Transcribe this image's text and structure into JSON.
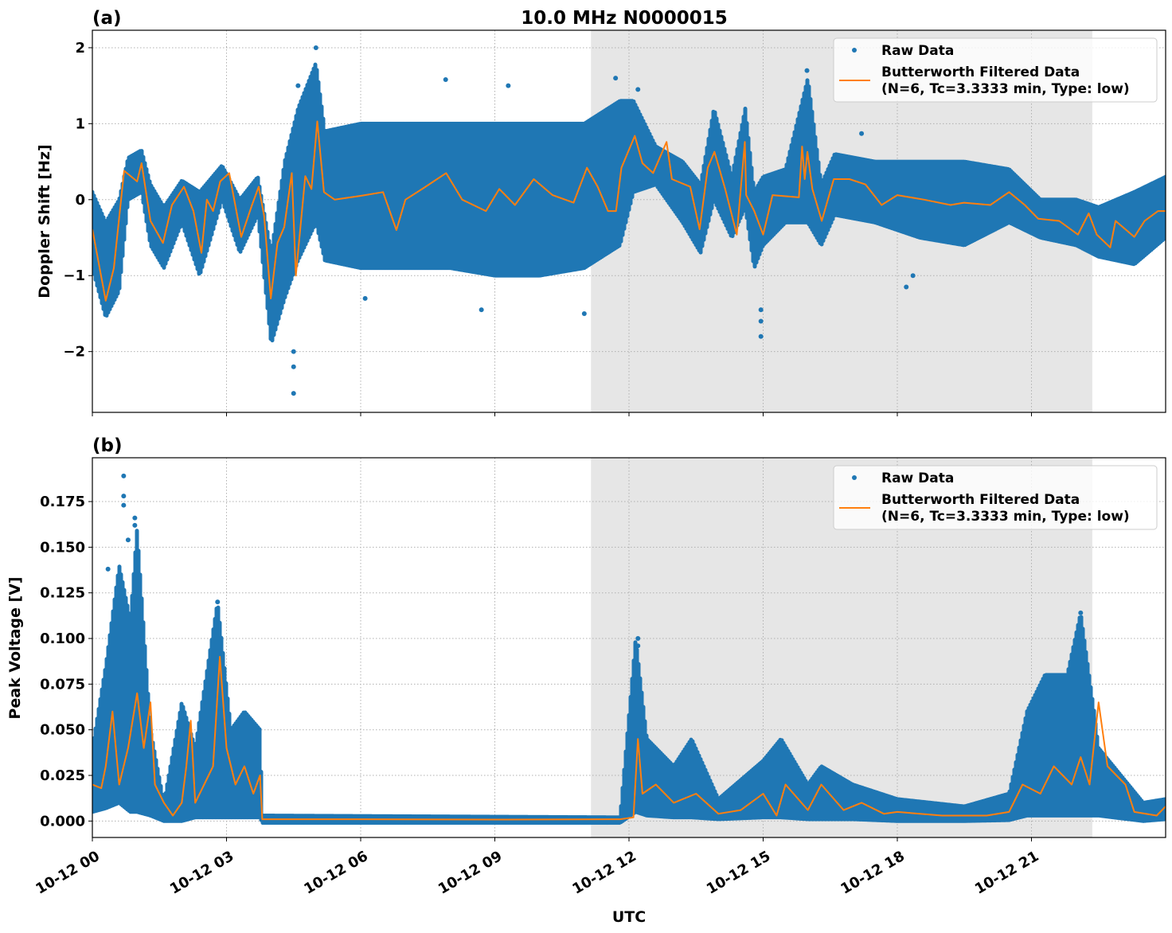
{
  "title": "10.0 MHz N0000015",
  "colors": {
    "raw": "#1f77b4",
    "filtered": "#ff7f0e",
    "shade": "#e6e6e6",
    "grid": "#b0b0b0"
  },
  "xaxis": {
    "label": "UTC",
    "range_hours": [
      0,
      24
    ],
    "ticks": [
      {
        "h": 0,
        "label": "10-12 00"
      },
      {
        "h": 3,
        "label": "10-12 03"
      },
      {
        "h": 6,
        "label": "10-12 06"
      },
      {
        "h": 9,
        "label": "10-12 09"
      },
      {
        "h": 12,
        "label": "10-12 12"
      },
      {
        "h": 15,
        "label": "10-12 15"
      },
      {
        "h": 18,
        "label": "10-12 18"
      },
      {
        "h": 21,
        "label": "10-12 21"
      }
    ]
  },
  "legend": {
    "raw": "Raw Data",
    "filtered_line1": "Butterworth Filtered Data",
    "filtered_line2": "(N=6, Tc=3.3333 min, Type: low)",
    "placement": "upper right"
  },
  "chart_data": [
    {
      "type": "scatter+line",
      "panel_label": "(a)",
      "ylabel": "Doppler Shift [Hz]",
      "ylim": [
        -2.8,
        2.23
      ],
      "yticks": [
        {
          "v": 2,
          "label": "2"
        },
        {
          "v": 1,
          "label": "1"
        },
        {
          "v": 0,
          "label": "0"
        },
        {
          "v": -1,
          "label": "−1"
        },
        {
          "v": -2,
          "label": "−2"
        }
      ],
      "grid": true,
      "shaded_span_hours": [
        11.15,
        22.36
      ],
      "raw_envelope": [
        [
          0,
          -0.9,
          0.1
        ],
        [
          0.3,
          -1.55,
          -0.3
        ],
        [
          0.6,
          -1.2,
          0
        ],
        [
          0.8,
          0,
          0.55
        ],
        [
          1.1,
          0.1,
          0.65
        ],
        [
          1.3,
          -0.6,
          0.2
        ],
        [
          1.6,
          -0.9,
          -0.1
        ],
        [
          2.0,
          -0.3,
          0.25
        ],
        [
          2.4,
          -1.0,
          0.1
        ],
        [
          2.9,
          0,
          0.45
        ],
        [
          3.3,
          -0.7,
          0
        ],
        [
          3.7,
          -0.2,
          0.3
        ],
        [
          4.0,
          -1.9,
          -0.7
        ],
        [
          4.3,
          -1.3,
          0.5
        ],
        [
          4.6,
          -0.8,
          1.2
        ],
        [
          5.0,
          -0.3,
          1.8
        ],
        [
          5.2,
          -0.8,
          0.9
        ],
        [
          6,
          -0.9,
          1.0
        ],
        [
          7,
          -0.9,
          1.0
        ],
        [
          8,
          -0.9,
          1.0
        ],
        [
          9,
          -1.0,
          1.0
        ],
        [
          10,
          -1.0,
          1.0
        ],
        [
          11,
          -0.9,
          1.0
        ],
        [
          11.8,
          -0.6,
          1.3
        ],
        [
          12.1,
          0.1,
          1.3
        ],
        [
          12.6,
          0.2,
          0.7
        ],
        [
          13.2,
          -0.3,
          0.5
        ],
        [
          13.6,
          -0.7,
          0.2
        ],
        [
          13.9,
          0,
          1.2
        ],
        [
          14.3,
          -0.5,
          0.3
        ],
        [
          14.6,
          -0.1,
          1.2
        ],
        [
          14.8,
          -0.9,
          0.1
        ],
        [
          15.0,
          -0.6,
          0.3
        ],
        [
          15.5,
          -0.3,
          0.4
        ],
        [
          16.0,
          -0.3,
          1.6
        ],
        [
          16.3,
          -0.6,
          0.2
        ],
        [
          16.6,
          -0.2,
          0.6
        ],
        [
          17.5,
          -0.3,
          0.5
        ],
        [
          18.5,
          -0.5,
          0.5
        ],
        [
          19.5,
          -0.6,
          0.5
        ],
        [
          20.5,
          -0.3,
          0.4
        ],
        [
          21.2,
          -0.5,
          0
        ],
        [
          22,
          -0.6,
          0
        ],
        [
          22.5,
          -0.75,
          -0.1
        ],
        [
          23.3,
          -0.85,
          0.1
        ],
        [
          24,
          -0.5,
          0.3
        ]
      ],
      "raw_outliers": [
        [
          4.5,
          -2.55
        ],
        [
          4.5,
          -2.2
        ],
        [
          4.5,
          -2.0
        ],
        [
          5.0,
          2.0
        ],
        [
          4.6,
          1.5
        ],
        [
          14.95,
          -1.8
        ],
        [
          14.95,
          -1.45
        ],
        [
          14.95,
          -1.6
        ],
        [
          11.7,
          1.6
        ],
        [
          12.2,
          1.45
        ],
        [
          15.98,
          1.7
        ],
        [
          17.2,
          0.87
        ],
        [
          18.2,
          -1.15
        ],
        [
          18.35,
          -1.0
        ],
        [
          6.1,
          -1.3
        ],
        [
          8.7,
          -1.45
        ],
        [
          11.0,
          -1.5
        ],
        [
          9.3,
          1.5
        ],
        [
          7.9,
          1.58
        ]
      ],
      "filtered": [
        [
          0,
          -0.39
        ],
        [
          0.3,
          -1.33
        ],
        [
          0.48,
          -0.9
        ],
        [
          0.71,
          0.38
        ],
        [
          1.0,
          0.24
        ],
        [
          1.1,
          0.48
        ],
        [
          1.3,
          -0.28
        ],
        [
          1.58,
          -0.57
        ],
        [
          1.78,
          -0.07
        ],
        [
          2.05,
          0.17
        ],
        [
          2.26,
          -0.15
        ],
        [
          2.44,
          -0.7
        ],
        [
          2.56,
          0
        ],
        [
          2.7,
          -0.15
        ],
        [
          2.86,
          0.24
        ],
        [
          3.06,
          0.35
        ],
        [
          3.33,
          -0.49
        ],
        [
          3.57,
          -0.07
        ],
        [
          3.72,
          0.17
        ],
        [
          3.84,
          -0.21
        ],
        [
          3.99,
          -1.3
        ],
        [
          4.14,
          -0.57
        ],
        [
          4.29,
          -0.36
        ],
        [
          4.46,
          0.35
        ],
        [
          4.55,
          -1.0
        ],
        [
          4.76,
          0.31
        ],
        [
          4.9,
          0.14
        ],
        [
          5.03,
          1.03
        ],
        [
          5.18,
          0.1
        ],
        [
          5.42,
          0
        ],
        [
          6.0,
          0.05
        ],
        [
          6.5,
          0.1
        ],
        [
          6.8,
          -0.4
        ],
        [
          7.0,
          0
        ],
        [
          7.4,
          0.15
        ],
        [
          7.91,
          0.35
        ],
        [
          8.27,
          0
        ],
        [
          8.8,
          -0.15
        ],
        [
          9.1,
          0.14
        ],
        [
          9.45,
          -0.07
        ],
        [
          9.87,
          0.27
        ],
        [
          10.29,
          0.06
        ],
        [
          10.76,
          -0.04
        ],
        [
          11.06,
          0.42
        ],
        [
          11.3,
          0.17
        ],
        [
          11.53,
          -0.15
        ],
        [
          11.71,
          -0.15
        ],
        [
          11.83,
          0.42
        ],
        [
          12.13,
          0.84
        ],
        [
          12.3,
          0.48
        ],
        [
          12.54,
          0.35
        ],
        [
          12.84,
          0.76
        ],
        [
          12.96,
          0.27
        ],
        [
          13.37,
          0.17
        ],
        [
          13.58,
          -0.39
        ],
        [
          13.76,
          0.42
        ],
        [
          13.91,
          0.63
        ],
        [
          14.15,
          0.14
        ],
        [
          14.41,
          -0.46
        ],
        [
          14.59,
          0.76
        ],
        [
          14.62,
          0.06
        ],
        [
          14.8,
          -0.15
        ],
        [
          15.0,
          -0.46
        ],
        [
          15.21,
          0.06
        ],
        [
          15.8,
          0.03
        ],
        [
          15.87,
          0.7
        ],
        [
          15.93,
          0.27
        ],
        [
          15.99,
          0.63
        ],
        [
          16.1,
          0.14
        ],
        [
          16.31,
          -0.28
        ],
        [
          16.58,
          0.27
        ],
        [
          16.93,
          0.27
        ],
        [
          17.29,
          0.2
        ],
        [
          17.65,
          -0.07
        ],
        [
          18.0,
          0.06
        ],
        [
          18.6,
          0
        ],
        [
          19.19,
          -0.07
        ],
        [
          19.49,
          -0.04
        ],
        [
          20.08,
          -0.07
        ],
        [
          20.5,
          0.1
        ],
        [
          20.85,
          -0.07
        ],
        [
          21.15,
          -0.25
        ],
        [
          21.62,
          -0.28
        ],
        [
          22.04,
          -0.46
        ],
        [
          22.28,
          -0.18
        ],
        [
          22.46,
          -0.46
        ],
        [
          22.76,
          -0.63
        ],
        [
          22.88,
          -0.28
        ],
        [
          23.3,
          -0.49
        ],
        [
          23.53,
          -0.28
        ],
        [
          23.83,
          -0.15
        ],
        [
          24.0,
          -0.15
        ]
      ]
    },
    {
      "type": "scatter+line",
      "panel_label": "(b)",
      "ylabel": "Peak Voltage [V]",
      "ylim": [
        -0.009,
        0.199
      ],
      "yticks": [
        {
          "v": 0,
          "label": "0.000"
        },
        {
          "v": 0.025,
          "label": "0.025"
        },
        {
          "v": 0.05,
          "label": "0.050"
        },
        {
          "v": 0.075,
          "label": "0.075"
        },
        {
          "v": 0.1,
          "label": "0.100"
        },
        {
          "v": 0.125,
          "label": "0.125"
        },
        {
          "v": 0.15,
          "label": "0.150"
        },
        {
          "v": 0.175,
          "label": "0.175"
        }
      ],
      "grid": true,
      "shaded_span_hours": [
        11.15,
        22.36
      ],
      "raw_envelope": [
        [
          0,
          0.005,
          0.04
        ],
        [
          0.3,
          0.007,
          0.085
        ],
        [
          0.6,
          0.01,
          0.14
        ],
        [
          0.85,
          0.005,
          0.11
        ],
        [
          1.0,
          0.005,
          0.16
        ],
        [
          1.3,
          0.003,
          0.05
        ],
        [
          1.6,
          0.0,
          0.01
        ],
        [
          2.0,
          0.0,
          0.065
        ],
        [
          2.3,
          0.002,
          0.04
        ],
        [
          2.8,
          0.002,
          0.12
        ],
        [
          3.1,
          0.002,
          0.05
        ],
        [
          3.4,
          0.002,
          0.06
        ],
        [
          3.75,
          0.002,
          0.05
        ],
        [
          3.8,
          -0.001,
          0.003
        ],
        [
          11.8,
          -0.001,
          0.002
        ],
        [
          12.15,
          0.005,
          0.1
        ],
        [
          12.4,
          0.003,
          0.045
        ],
        [
          13.0,
          0.002,
          0.03
        ],
        [
          13.4,
          0.002,
          0.045
        ],
        [
          14,
          0.001,
          0.012
        ],
        [
          15,
          0.002,
          0.033
        ],
        [
          15.4,
          0.002,
          0.045
        ],
        [
          16,
          0.001,
          0.02
        ],
        [
          16.3,
          0.001,
          0.03
        ],
        [
          17,
          0.001,
          0.02
        ],
        [
          18,
          0.0,
          0.012
        ],
        [
          19.5,
          0.0,
          0.008
        ],
        [
          20.5,
          0.0005,
          0.015
        ],
        [
          20.9,
          0.003,
          0.06
        ],
        [
          21.3,
          0.003,
          0.08
        ],
        [
          21.8,
          0.003,
          0.08
        ],
        [
          22.1,
          0.003,
          0.114
        ],
        [
          22.4,
          0.003,
          0.06
        ],
        [
          22.5,
          0.003,
          0.04
        ],
        [
          23.5,
          0.0,
          0.01
        ],
        [
          24,
          0.001,
          0.012
        ]
      ],
      "raw_outliers": [
        [
          0.7,
          0.189
        ],
        [
          0.7,
          0.178
        ],
        [
          0.7,
          0.173
        ],
        [
          0.95,
          0.166
        ],
        [
          0.95,
          0.162
        ],
        [
          0.8,
          0.154
        ],
        [
          0.35,
          0.138
        ],
        [
          2.8,
          0.12
        ],
        [
          12.2,
          0.1
        ],
        [
          12.2,
          0.096
        ],
        [
          22.1,
          0.114
        ]
      ],
      "filtered": [
        [
          0,
          0.02
        ],
        [
          0.2,
          0.018
        ],
        [
          0.3,
          0.03
        ],
        [
          0.45,
          0.06
        ],
        [
          0.6,
          0.02
        ],
        [
          0.8,
          0.04
        ],
        [
          1.0,
          0.07
        ],
        [
          1.15,
          0.04
        ],
        [
          1.3,
          0.065
        ],
        [
          1.4,
          0.02
        ],
        [
          1.6,
          0.01
        ],
        [
          1.8,
          0.003
        ],
        [
          2.0,
          0.01
        ],
        [
          2.1,
          0.03
        ],
        [
          2.2,
          0.055
        ],
        [
          2.3,
          0.01
        ],
        [
          2.5,
          0.02
        ],
        [
          2.7,
          0.03
        ],
        [
          2.85,
          0.09
        ],
        [
          3.0,
          0.04
        ],
        [
          3.2,
          0.02
        ],
        [
          3.4,
          0.03
        ],
        [
          3.6,
          0.015
        ],
        [
          3.75,
          0.025
        ],
        [
          3.8,
          0.001
        ],
        [
          6,
          0.001
        ],
        [
          9,
          0.0008
        ],
        [
          11.8,
          0.001
        ],
        [
          12.1,
          0.002
        ],
        [
          12.2,
          0.045
        ],
        [
          12.3,
          0.015
        ],
        [
          12.6,
          0.02
        ],
        [
          13.0,
          0.01
        ],
        [
          13.5,
          0.015
        ],
        [
          14,
          0.004
        ],
        [
          14.5,
          0.006
        ],
        [
          15.0,
          0.015
        ],
        [
          15.3,
          0.003
        ],
        [
          15.5,
          0.02
        ],
        [
          16,
          0.006
        ],
        [
          16.3,
          0.02
        ],
        [
          16.8,
          0.006
        ],
        [
          17.2,
          0.01
        ],
        [
          17.7,
          0.004
        ],
        [
          18,
          0.005
        ],
        [
          19,
          0.003
        ],
        [
          20,
          0.003
        ],
        [
          20.5,
          0.005
        ],
        [
          20.8,
          0.02
        ],
        [
          21.2,
          0.015
        ],
        [
          21.5,
          0.03
        ],
        [
          21.9,
          0.02
        ],
        [
          22.1,
          0.035
        ],
        [
          22.3,
          0.02
        ],
        [
          22.5,
          0.065
        ],
        [
          22.7,
          0.03
        ],
        [
          22.9,
          0.025
        ],
        [
          23.1,
          0.02
        ],
        [
          23.3,
          0.005
        ],
        [
          23.8,
          0.003
        ],
        [
          24,
          0.008
        ]
      ]
    }
  ]
}
